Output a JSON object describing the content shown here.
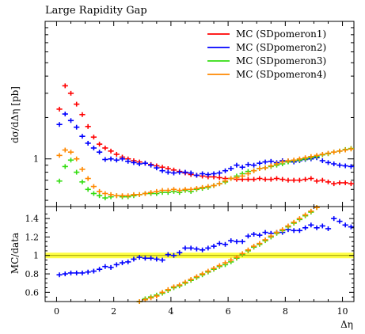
{
  "chart_data": [
    {
      "type": "scatter",
      "panel": "main",
      "title": "Large Rapidity Gap",
      "xlabel": "",
      "ylabel": "dσ/dΔη [pb]",
      "yscale": "log",
      "xlim": [
        -0.4,
        10.4
      ],
      "ylim": [
        0.45,
        10.0
      ],
      "yticks": [
        {
          "value": 1,
          "label": "1"
        }
      ],
      "bin_centers": [
        0.1,
        0.3,
        0.5,
        0.7,
        0.9,
        1.1,
        1.3,
        1.5,
        1.7,
        1.9,
        2.1,
        2.3,
        2.5,
        2.7,
        2.9,
        3.1,
        3.3,
        3.5,
        3.7,
        3.9,
        4.1,
        4.3,
        4.5,
        4.7,
        4.9,
        5.1,
        5.3,
        5.5,
        5.7,
        5.9,
        6.1,
        6.3,
        6.5,
        6.7,
        6.9,
        7.1,
        7.3,
        7.5,
        7.7,
        7.9,
        8.1,
        8.3,
        8.5,
        8.7,
        8.9,
        9.1,
        9.3,
        9.5,
        9.7,
        9.9,
        10.1,
        10.3
      ],
      "legend_position": "top-right",
      "series": [
        {
          "name": "MC (SDpomeron1)",
          "color": "#ff0000",
          "values": [
            2.3,
            3.4,
            3.0,
            2.5,
            2.1,
            1.72,
            1.44,
            1.28,
            1.2,
            1.14,
            1.08,
            1.03,
            1.0,
            0.97,
            0.95,
            0.93,
            0.91,
            0.89,
            0.87,
            0.85,
            0.83,
            0.81,
            0.79,
            0.77,
            0.76,
            0.75,
            0.74,
            0.74,
            0.73,
            0.72,
            0.72,
            0.71,
            0.71,
            0.71,
            0.71,
            0.72,
            0.71,
            0.71,
            0.72,
            0.71,
            0.7,
            0.7,
            0.7,
            0.71,
            0.72,
            0.69,
            0.7,
            0.68,
            0.66,
            0.67,
            0.67,
            0.66
          ]
        },
        {
          "name": "MC (SDpomeron2)",
          "color": "#0000ff",
          "values": [
            1.78,
            2.12,
            1.9,
            1.7,
            1.46,
            1.3,
            1.2,
            1.12,
            0.99,
            1.0,
            0.98,
            1.0,
            0.96,
            0.94,
            0.92,
            0.93,
            0.9,
            0.86,
            0.82,
            0.8,
            0.79,
            0.8,
            0.8,
            0.79,
            0.76,
            0.78,
            0.77,
            0.78,
            0.79,
            0.82,
            0.85,
            0.9,
            0.87,
            0.91,
            0.9,
            0.93,
            0.95,
            0.96,
            0.94,
            0.97,
            0.96,
            0.95,
            0.97,
            0.99,
            1.0,
            1.02,
            0.97,
            0.94,
            0.92,
            0.9,
            0.89,
            0.88
          ]
        },
        {
          "name": "MC (SDpomeron3)",
          "color": "#33dd11",
          "values": [
            0.69,
            0.88,
            0.98,
            0.8,
            0.68,
            0.6,
            0.56,
            0.54,
            0.52,
            0.53,
            0.54,
            0.53,
            0.53,
            0.54,
            0.55,
            0.56,
            0.56,
            0.56,
            0.57,
            0.57,
            0.58,
            0.57,
            0.59,
            0.58,
            0.6,
            0.61,
            0.62,
            0.64,
            0.66,
            0.68,
            0.72,
            0.75,
            0.78,
            0.81,
            0.82,
            0.85,
            0.86,
            0.88,
            0.9,
            0.92,
            0.95,
            0.97,
            0.98,
            1.0,
            1.02,
            1.04,
            1.07,
            1.09,
            1.12,
            1.14,
            1.17,
            1.19
          ]
        },
        {
          "name": "MC (SDpomeron4)",
          "color": "#ff8800",
          "values": [
            1.06,
            1.16,
            1.12,
            1.0,
            0.84,
            0.72,
            0.63,
            0.58,
            0.56,
            0.55,
            0.54,
            0.54,
            0.54,
            0.55,
            0.55,
            0.56,
            0.57,
            0.58,
            0.59,
            0.59,
            0.6,
            0.59,
            0.6,
            0.6,
            0.61,
            0.62,
            0.63,
            0.64,
            0.66,
            0.69,
            0.72,
            0.73,
            0.75,
            0.78,
            0.82,
            0.85,
            0.86,
            0.89,
            0.92,
            0.95,
            0.97,
            0.98,
            1.0,
            1.02,
            1.04,
            1.06,
            1.08,
            1.1,
            1.12,
            1.14,
            1.16,
            1.18
          ]
        }
      ]
    },
    {
      "type": "scatter",
      "panel": "ratio",
      "xlabel": "Δη",
      "ylabel": "MC/data",
      "xlim": [
        -0.4,
        10.4
      ],
      "ylim": [
        0.5,
        1.53
      ],
      "xticks": [
        0,
        2,
        4,
        6,
        8,
        10
      ],
      "yticks": [
        {
          "value": 0.6,
          "label": "0.6"
        },
        {
          "value": 0.8,
          "label": "0.8"
        },
        {
          "value": 1.0,
          "label": "1"
        },
        {
          "value": 1.2,
          "label": "1.2"
        },
        {
          "value": 1.4,
          "label": "1.4"
        }
      ],
      "reference_band": {
        "center": 1.0,
        "low": 0.97,
        "high": 1.03,
        "color": "#ffff44",
        "line_color": "#999900"
      },
      "series": [
        {
          "color": "#0000ff",
          "values": [
            0.79,
            0.8,
            0.81,
            0.81,
            0.81,
            0.82,
            0.83,
            0.85,
            0.88,
            0.87,
            0.9,
            0.92,
            0.93,
            0.96,
            0.98,
            0.97,
            0.97,
            0.96,
            0.95,
            1.01,
            1.0,
            1.03,
            1.08,
            1.08,
            1.07,
            1.06,
            1.08,
            1.1,
            1.13,
            1.12,
            1.16,
            1.15,
            1.15,
            1.21,
            1.23,
            1.22,
            1.25,
            1.24,
            1.25,
            1.25,
            1.28,
            1.27,
            1.27,
            1.3,
            1.33,
            1.3,
            1.32,
            1.29,
            1.4,
            1.37,
            1.33,
            1.31
          ]
        },
        {
          "color": "#33dd11",
          "values": [
            null,
            null,
            null,
            null,
            null,
            null,
            null,
            null,
            null,
            null,
            null,
            null,
            0.43,
            0.47,
            0.5,
            0.53,
            0.55,
            0.57,
            0.59,
            0.62,
            0.65,
            0.67,
            0.7,
            0.73,
            0.76,
            0.79,
            0.82,
            0.85,
            0.88,
            0.9,
            0.93,
            0.97,
            1.01,
            1.05,
            1.09,
            1.12,
            1.16,
            1.2,
            1.24,
            1.27,
            1.31,
            1.35,
            1.39,
            1.43,
            1.47,
            1.52,
            null,
            null,
            null,
            null,
            null,
            null
          ]
        },
        {
          "color": "#ff8800",
          "values": [
            null,
            null,
            null,
            null,
            null,
            null,
            null,
            null,
            null,
            null,
            null,
            null,
            0.44,
            0.48,
            0.5,
            0.52,
            0.54,
            0.56,
            0.6,
            0.63,
            0.66,
            0.68,
            0.71,
            0.74,
            0.77,
            0.8,
            0.83,
            0.86,
            0.89,
            0.92,
            0.95,
            0.98,
            1.02,
            1.06,
            1.1,
            1.13,
            1.17,
            1.21,
            1.25,
            1.28,
            1.32,
            1.36,
            1.4,
            1.44,
            1.48,
            1.52,
            null,
            null,
            null,
            null,
            null,
            null
          ]
        }
      ]
    }
  ]
}
